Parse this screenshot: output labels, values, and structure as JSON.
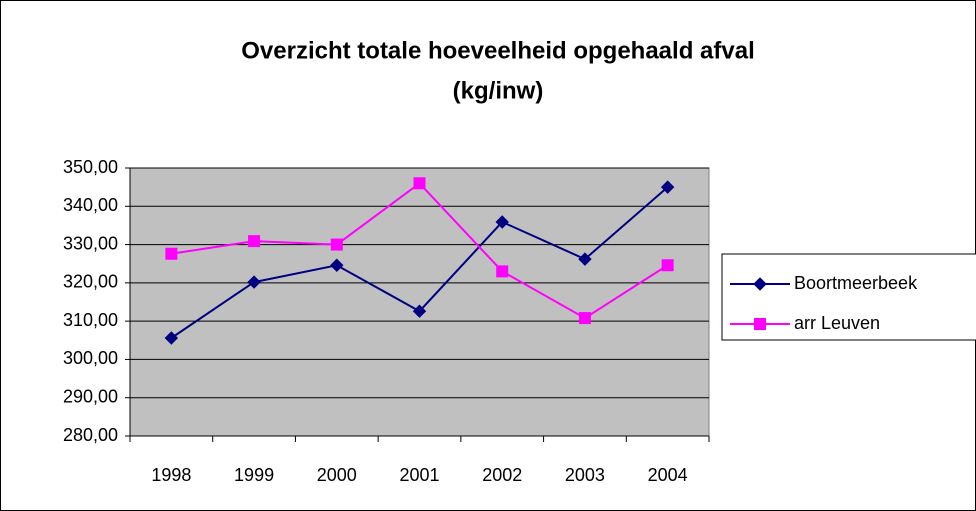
{
  "chart_data": {
    "type": "line",
    "title": [
      "Overzicht totale hoeveelheid opgehaald afval",
      "(kg/inw)"
    ],
    "categories": [
      "1998",
      "1999",
      "2000",
      "2001",
      "2002",
      "2003",
      "2004"
    ],
    "series": [
      {
        "name": "Boortmeerbeek",
        "color": "#000080",
        "marker": "diamond",
        "values": [
          305.6,
          320.2,
          324.6,
          312.6,
          335.9,
          326.2,
          345.0
        ]
      },
      {
        "name": "arr Leuven",
        "color": "#ff00ff",
        "marker": "square",
        "values": [
          327.6,
          330.9,
          330.0,
          346.0,
          323.0,
          310.8,
          324.6
        ]
      }
    ],
    "ylim": [
      280,
      350
    ],
    "yticks": [
      {
        "value": 280,
        "label": "280,00"
      },
      {
        "value": 290,
        "label": "290,00"
      },
      {
        "value": 300,
        "label": "300,00"
      },
      {
        "value": 310,
        "label": "310,00"
      },
      {
        "value": 320,
        "label": "320,00"
      },
      {
        "value": 330,
        "label": "330,00"
      },
      {
        "value": 340,
        "label": "340,00"
      },
      {
        "value": 350,
        "label": "350,00"
      }
    ],
    "grid": true,
    "legend": "right",
    "plot_background": "#c0c0c0"
  }
}
